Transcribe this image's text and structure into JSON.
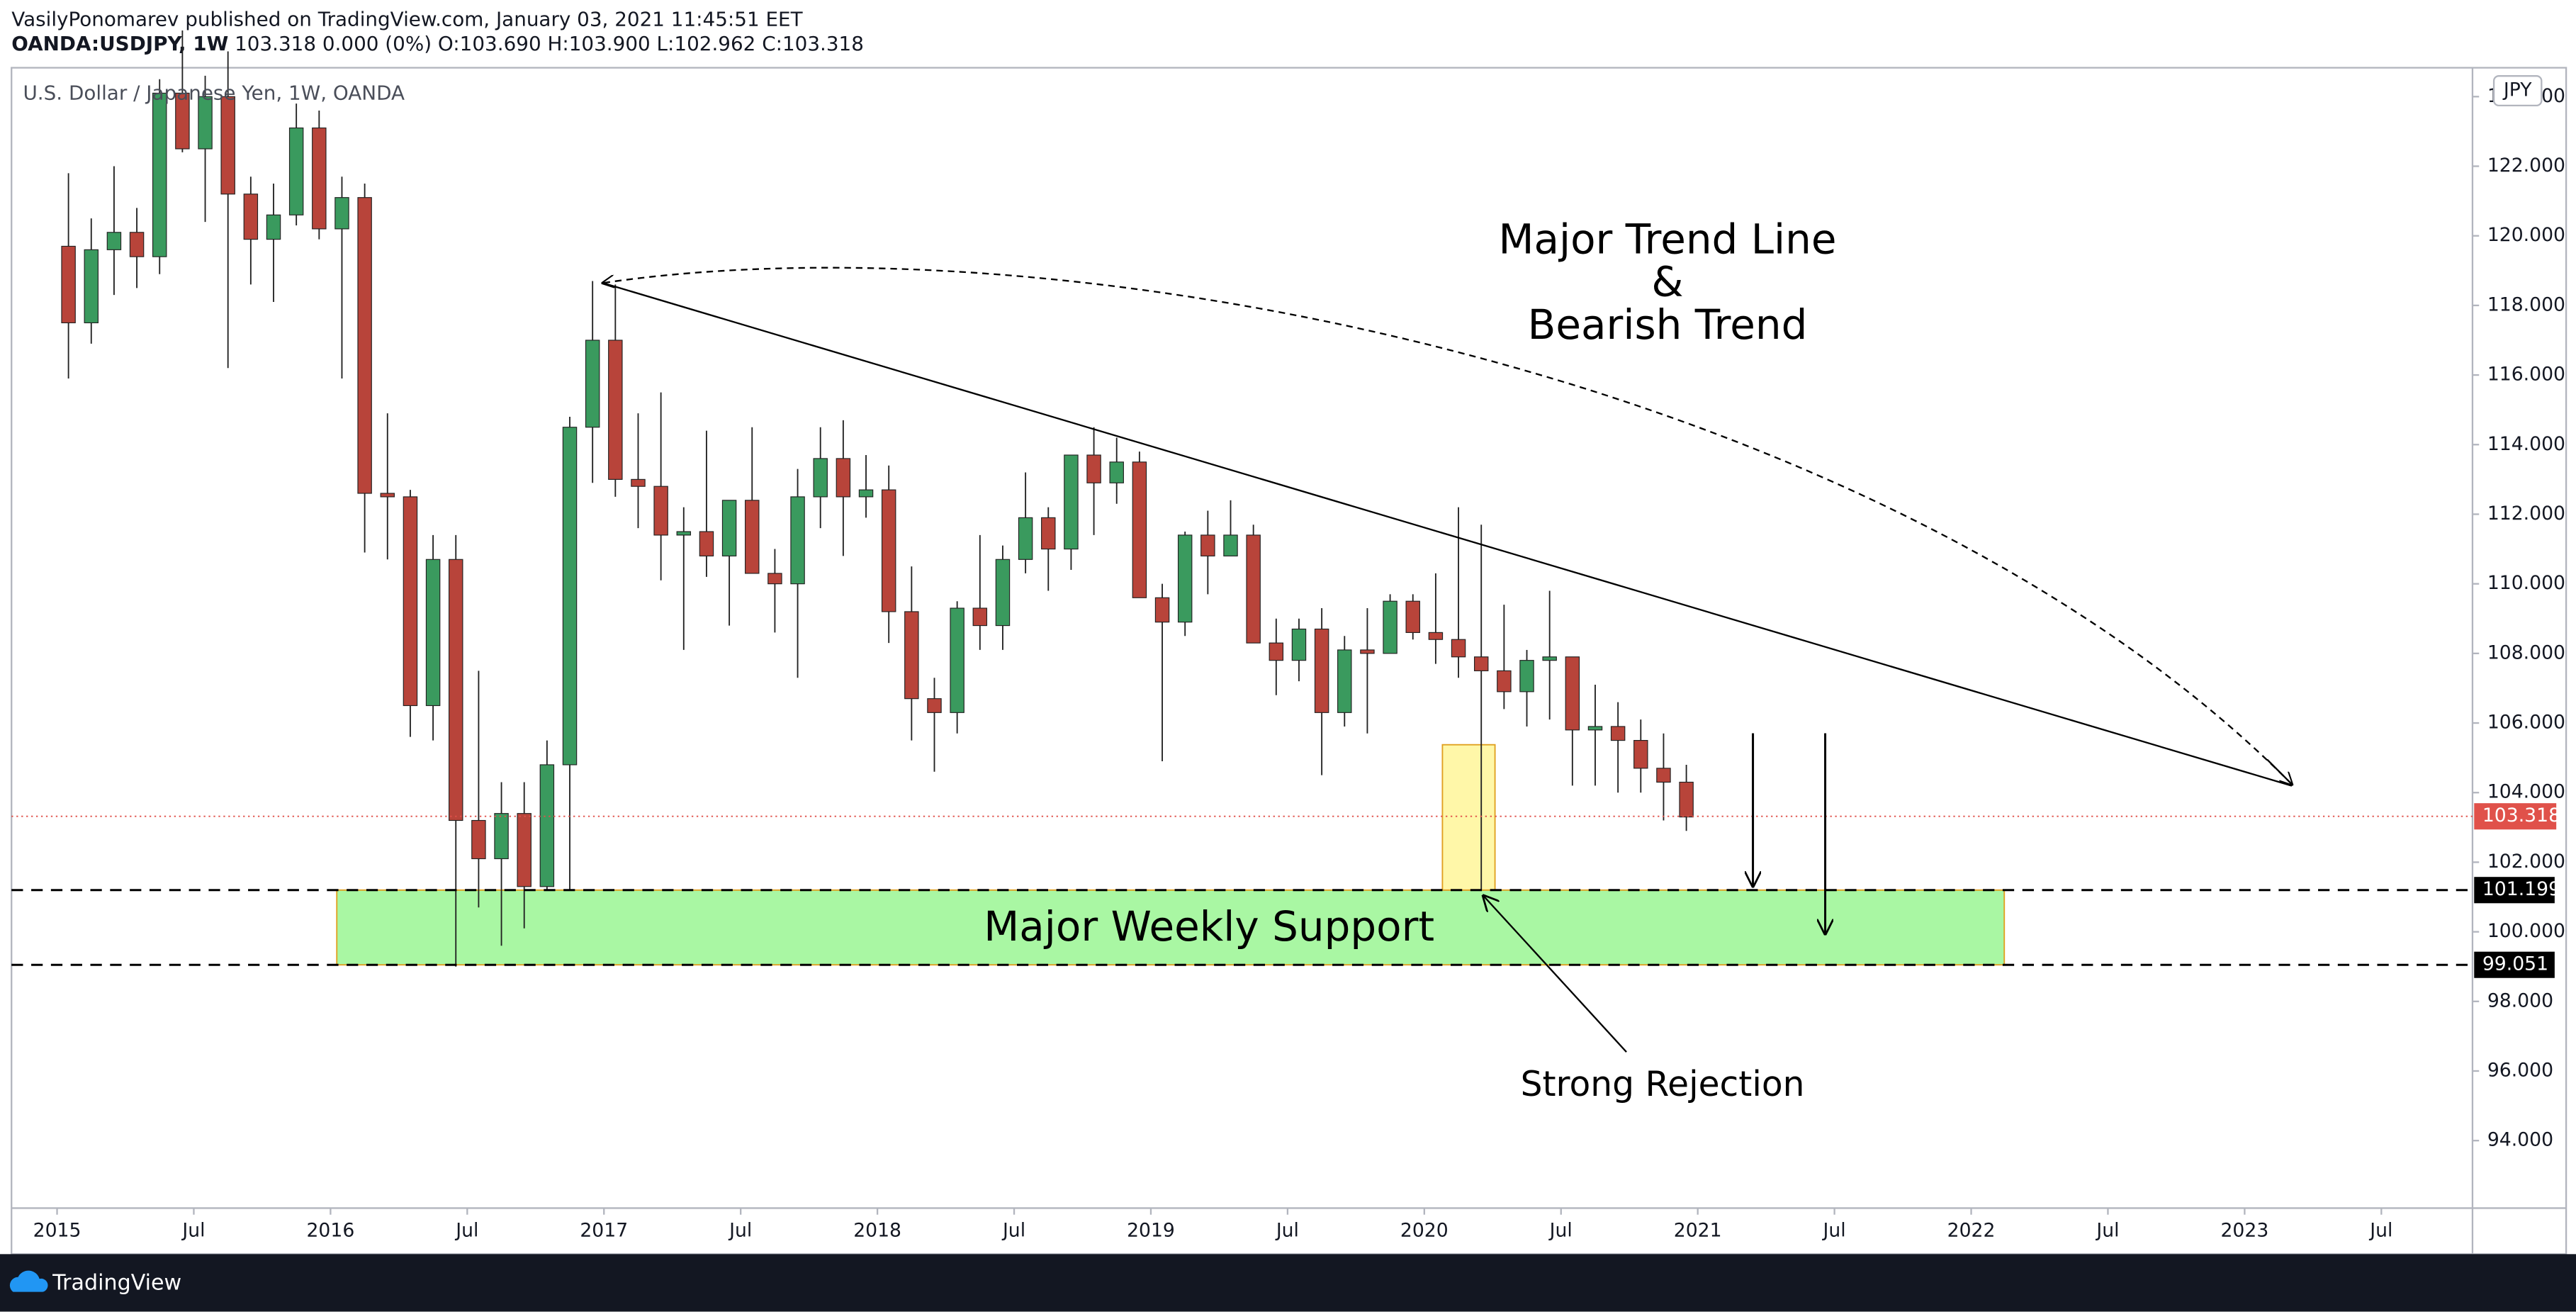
{
  "header": {
    "publisher": "VasilyPonomarev published on TradingView.com, January 03, 2021 11:45:51 EET",
    "symbol": "OANDA:USDJPY, 1W",
    "change": "103.318 0.000 (0%)",
    "ohlc": [
      "O:103.690",
      "H:103.900",
      "L:102.962",
      "C:103.318"
    ]
  },
  "chart_data": {
    "type": "candlestick",
    "legend_title": "U.S. Dollar / Japanese Yen, 1W, OANDA",
    "currency": "JPY",
    "up_color": "#3a9a5e",
    "down_color": "#b8443a",
    "x": [
      "2015-01",
      "2015-02",
      "2015-03",
      "2015-04",
      "2015-05",
      "2015-06",
      "2015-07",
      "2015-08",
      "2015-09",
      "2015-10",
      "2015-11",
      "2015-12",
      "2016-01",
      "2016-02",
      "2016-03",
      "2016-04",
      "2016-05",
      "2016-06",
      "2016-07",
      "2016-08",
      "2016-09",
      "2016-10",
      "2016-11",
      "2016-12",
      "2017-01",
      "2017-02",
      "2017-03",
      "2017-04",
      "2017-05",
      "2017-06",
      "2017-07",
      "2017-08",
      "2017-09",
      "2017-10",
      "2017-11",
      "2017-12",
      "2018-01",
      "2018-02",
      "2018-03",
      "2018-04",
      "2018-05",
      "2018-06",
      "2018-07",
      "2018-08",
      "2018-09",
      "2018-10",
      "2018-11",
      "2018-12",
      "2019-01",
      "2019-02",
      "2019-03",
      "2019-04",
      "2019-05",
      "2019-06",
      "2019-07",
      "2019-08",
      "2019-09",
      "2019-10",
      "2019-11",
      "2019-12",
      "2020-01",
      "2020-02",
      "2020-03",
      "2020-04",
      "2020-05",
      "2020-06",
      "2020-07",
      "2020-08",
      "2020-09",
      "2020-10",
      "2020-11",
      "2020-12"
    ],
    "open": [
      119.7,
      117.5,
      119.6,
      120.1,
      119.4,
      124.1,
      122.5,
      124.0,
      121.2,
      119.9,
      120.6,
      123.1,
      120.2,
      121.1,
      112.6,
      112.5,
      106.5,
      110.7,
      103.2,
      102.1,
      103.4,
      101.3,
      104.8,
      114.5,
      117.0,
      113.0,
      112.8,
      111.4,
      111.5,
      110.8,
      112.4,
      110.3,
      110.0,
      112.5,
      113.6,
      112.5,
      112.7,
      109.2,
      106.7,
      106.3,
      109.3,
      108.8,
      110.7,
      111.9,
      111.0,
      113.7,
      112.9,
      113.5,
      109.6,
      108.9,
      111.4,
      110.8,
      111.4,
      108.3,
      107.8,
      108.7,
      106.3,
      108.1,
      108.0,
      109.5,
      108.6,
      108.4,
      107.9,
      107.5,
      106.9,
      107.8,
      107.9,
      105.8,
      105.9,
      105.5,
      104.7,
      104.3
    ],
    "high": [
      121.8,
      120.5,
      122.0,
      120.8,
      124.5,
      125.9,
      124.6,
      125.3,
      121.7,
      121.5,
      123.8,
      123.6,
      121.7,
      121.5,
      114.9,
      112.7,
      111.4,
      111.4,
      107.5,
      104.3,
      104.3,
      105.5,
      114.8,
      118.7,
      118.6,
      114.9,
      115.5,
      112.2,
      114.4,
      112.4,
      114.5,
      111.0,
      113.3,
      114.5,
      114.7,
      113.7,
      113.4,
      110.5,
      107.3,
      109.5,
      111.4,
      111.1,
      113.2,
      112.2,
      113.7,
      114.5,
      114.2,
      113.8,
      110.0,
      111.5,
      112.1,
      112.4,
      111.7,
      109.0,
      109.0,
      109.3,
      108.5,
      109.3,
      109.7,
      109.7,
      110.3,
      112.2,
      111.7,
      109.4,
      108.1,
      109.8,
      107.9,
      107.1,
      106.6,
      106.1,
      105.7,
      104.8
    ],
    "low": [
      115.9,
      116.9,
      118.3,
      118.5,
      118.9,
      122.4,
      120.4,
      116.2,
      118.6,
      118.1,
      120.3,
      119.9,
      115.9,
      110.9,
      110.7,
      105.6,
      105.5,
      99.0,
      100.7,
      99.6,
      100.1,
      101.2,
      101.2,
      112.9,
      112.5,
      111.6,
      110.1,
      108.1,
      110.2,
      108.8,
      110.6,
      108.6,
      107.3,
      111.6,
      110.8,
      111.9,
      108.3,
      105.5,
      104.6,
      105.7,
      108.1,
      108.1,
      110.3,
      109.8,
      110.4,
      111.4,
      112.3,
      109.6,
      104.9,
      108.5,
      109.7,
      110.8,
      108.3,
      106.8,
      107.2,
      104.5,
      105.9,
      105.7,
      108.2,
      108.4,
      107.7,
      107.3,
      101.2,
      106.4,
      105.9,
      106.1,
      104.2,
      104.2,
      104.0,
      104.0,
      103.2,
      102.9
    ],
    "close": [
      117.5,
      119.6,
      120.1,
      119.4,
      124.1,
      122.5,
      124.0,
      121.2,
      119.9,
      120.6,
      123.1,
      120.2,
      121.1,
      112.6,
      112.5,
      106.5,
      110.7,
      103.2,
      102.1,
      103.4,
      101.3,
      104.8,
      114.5,
      117.0,
      113.0,
      112.8,
      111.4,
      111.5,
      110.8,
      112.4,
      110.3,
      110.0,
      112.5,
      113.6,
      112.5,
      112.7,
      109.2,
      106.7,
      106.3,
      109.3,
      108.8,
      110.7,
      111.9,
      111.0,
      113.7,
      112.9,
      113.5,
      109.6,
      108.9,
      111.4,
      110.8,
      111.4,
      108.3,
      107.8,
      108.7,
      106.3,
      108.1,
      108.0,
      109.5,
      108.6,
      108.4,
      107.9,
      107.5,
      106.9,
      107.8,
      107.9,
      105.8,
      105.9,
      105.5,
      104.7,
      104.3,
      103.3
    ],
    "xlim": [
      "2014-11",
      "2023-11"
    ],
    "xticks": [
      {
        "value": "2015-01",
        "label": "2015"
      },
      {
        "value": "2015-07",
        "label": "Jul"
      },
      {
        "value": "2016-01",
        "label": "2016"
      },
      {
        "value": "2016-07",
        "label": "Jul"
      },
      {
        "value": "2017-01",
        "label": "2017"
      },
      {
        "value": "2017-07",
        "label": "Jul"
      },
      {
        "value": "2018-01",
        "label": "2018"
      },
      {
        "value": "2018-07",
        "label": "Jul"
      },
      {
        "value": "2019-01",
        "label": "2019"
      },
      {
        "value": "2019-07",
        "label": "Jul"
      },
      {
        "value": "2020-01",
        "label": "2020"
      },
      {
        "value": "2020-07",
        "label": "Jul"
      },
      {
        "value": "2021-01",
        "label": "2021"
      },
      {
        "value": "2021-07",
        "label": "Jul"
      },
      {
        "value": "2022-01",
        "label": "2022"
      },
      {
        "value": "2022-07",
        "label": "Jul"
      },
      {
        "value": "2023-01",
        "label": "2023"
      },
      {
        "value": "2023-07",
        "label": "Jul"
      }
    ],
    "ylim": [
      92.06,
      124.83
    ],
    "yticks": [
      {
        "value": 94,
        "label": "94.000"
      },
      {
        "value": 96,
        "label": "96.000"
      },
      {
        "value": 98,
        "label": "98.000"
      },
      {
        "value": 100,
        "label": "100.000"
      },
      {
        "value": 102,
        "label": "102.000"
      },
      {
        "value": 104,
        "label": "104.000"
      },
      {
        "value": 106,
        "label": "106.000"
      },
      {
        "value": 108,
        "label": "108.000"
      },
      {
        "value": 110,
        "label": "110.000"
      },
      {
        "value": 112,
        "label": "112.000"
      },
      {
        "value": 114,
        "label": "114.000"
      },
      {
        "value": 116,
        "label": "116.000"
      },
      {
        "value": 118,
        "label": "118.000"
      },
      {
        "value": 120,
        "label": "120.000"
      },
      {
        "value": 122,
        "label": "122.000"
      },
      {
        "value": 124,
        "label": "124.000"
      }
    ],
    "last_price": 103.318,
    "levels": [
      101.199,
      99.051
    ],
    "trend_title": [
      "Major Trend Line",
      "&",
      "Bearish Trend"
    ],
    "support_label": "Major Weekly Support",
    "rejection_label": "Strong Rejection"
  },
  "footer": {
    "brand": "TradingView"
  }
}
